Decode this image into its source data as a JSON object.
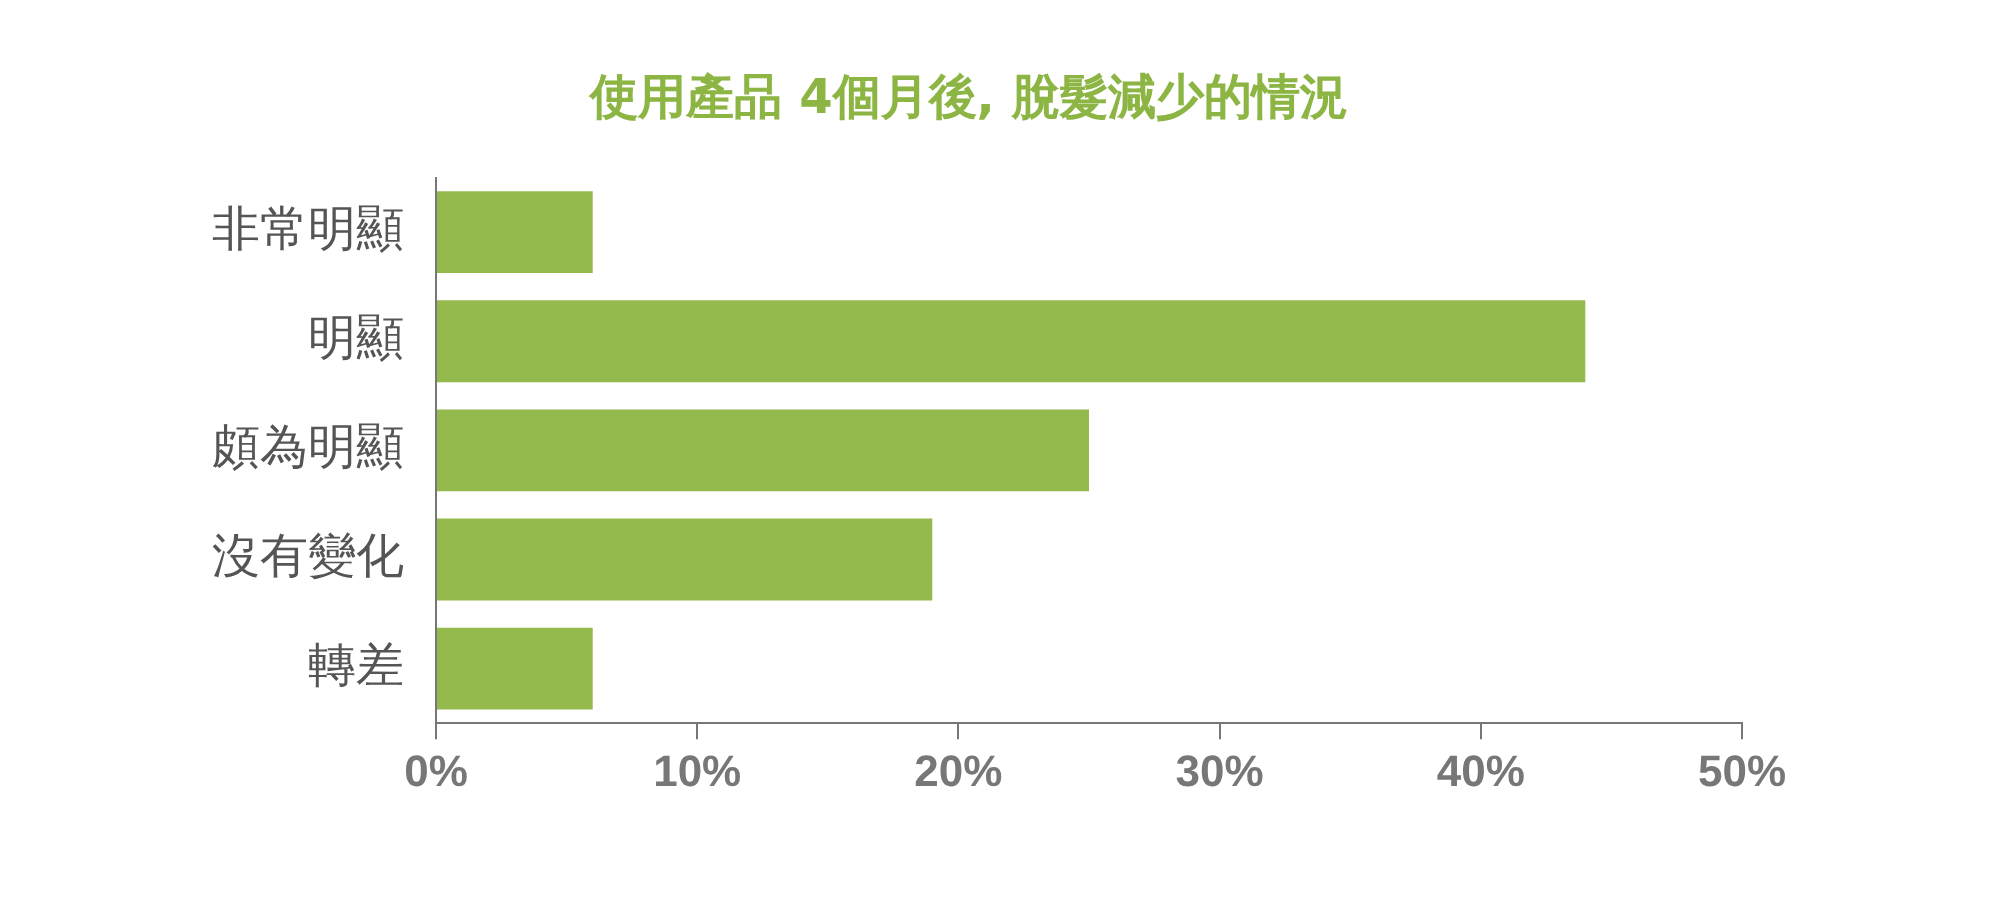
{
  "chart_data": {
    "type": "bar",
    "orientation": "horizontal",
    "title": "使用產品 4個月後, 脫髮減少的情況",
    "categories": [
      "非常明顯",
      "明顯",
      "頗為明顯",
      "沒有變化",
      "轉差"
    ],
    "values": [
      6,
      44,
      25,
      19,
      6
    ],
    "color": "#94b94d",
    "xlim": [
      0,
      50
    ],
    "xticks": [
      {
        "value": 0,
        "label": "0%"
      },
      {
        "value": 10,
        "label": "10%"
      },
      {
        "value": 20,
        "label": "20%"
      },
      {
        "value": 30,
        "label": "30%"
      },
      {
        "value": 40,
        "label": "40%"
      },
      {
        "value": 50,
        "label": "50%"
      }
    ],
    "grid": false,
    "legend": false
  }
}
